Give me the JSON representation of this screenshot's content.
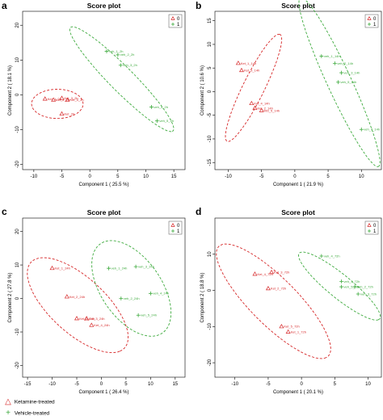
{
  "colors": {
    "group0": "#d62728",
    "group1": "#3daa3d",
    "axis": "#000000"
  },
  "chart_data": [
    {
      "panel": "a",
      "type": "scatter",
      "title": "Score plot",
      "xlabel": "Component 1 ( 25.5 %)",
      "ylabel": "Component 2 ( 18.1 %)",
      "xlim": [
        -12,
        17
      ],
      "ylim": [
        -21.5,
        24
      ],
      "xticks": [
        -10,
        -5,
        0,
        5,
        10,
        15
      ],
      "yticks": [
        -20,
        -10,
        0,
        10,
        20
      ],
      "legend": {
        "position": "top-right",
        "entries": [
          "0",
          "1"
        ]
      },
      "series": [
        {
          "name": "0",
          "marker": "triangle",
          "points": [
            {
              "label": "Ket_1_2h",
              "x": -8.0,
              "y": -1.2
            },
            {
              "label": "Ket_2_2h",
              "x": -6.5,
              "y": -1.5
            },
            {
              "label": "Ket_3_2h",
              "x": -5.0,
              "y": -1.0
            },
            {
              "label": "Ket_5_2h",
              "x": -4.0,
              "y": -1.5
            },
            {
              "label": "Ket_2h",
              "x": -5.0,
              "y": -5.5
            }
          ],
          "ellipse": {
            "cx": -5.8,
            "cy": -2.6,
            "rx": 4.6,
            "ry": 4.2,
            "angle": 0
          }
        },
        {
          "name": "1",
          "marker": "plus",
          "points": [
            {
              "label": "veh_1_2h",
              "x": 3.0,
              "y": 12.5
            },
            {
              "label": "veh_2_2h",
              "x": 5.0,
              "y": 11.5
            },
            {
              "label": "veh_3_2h",
              "x": 5.5,
              "y": 8.5
            },
            {
              "label": "veh_4_2h",
              "x": 11.0,
              "y": -3.5
            },
            {
              "label": "veh_5_2h",
              "x": 12.0,
              "y": -7.5
            }
          ],
          "ellipse": {
            "cx": 5.7,
            "cy": 4.5,
            "rx": 17.5,
            "ry": 2.6,
            "angle": -59
          }
        }
      ]
    },
    {
      "panel": "b",
      "type": "scatter",
      "title": "Score plot",
      "xlabel": "Component 1 ( 21.9 %)",
      "ylabel": "Component 2 ( 10.6 %)",
      "xlim": [
        -12,
        13
      ],
      "ylim": [
        -16.5,
        17
      ],
      "xticks": [
        -10,
        -5,
        0,
        5,
        10
      ],
      "yticks": [
        -15,
        -10,
        -5,
        0,
        5,
        10,
        15
      ],
      "legend": {
        "position": "top-right",
        "entries": [
          "0",
          "1"
        ]
      },
      "series": [
        {
          "name": "0",
          "marker": "triangle",
          "points": [
            {
              "label": "Ket_1_14h",
              "x": -8.5,
              "y": 6.0
            },
            {
              "label": "Ket_3_14h",
              "x": -8.0,
              "y": 4.5
            },
            {
              "label": "Ket_4_14h",
              "x": -6.5,
              "y": -2.5
            },
            {
              "label": "Ket_2_14h",
              "x": -6.0,
              "y": -3.5
            },
            {
              "label": "Ket_5_14h",
              "x": -5.0,
              "y": -4.0
            }
          ],
          "ellipse": {
            "cx": -6.2,
            "cy": 0.8,
            "rx": 12.0,
            "ry": 1.7,
            "angle": 71
          }
        },
        {
          "name": "1",
          "marker": "plus",
          "points": [
            {
              "label": "veh_1_14h",
              "x": 4.0,
              "y": 7.5
            },
            {
              "label": "veh_2_14h",
              "x": 6.0,
              "y": 6.0
            },
            {
              "label": "veh_3_14h",
              "x": 7.0,
              "y": 4.0
            },
            {
              "label": "veh_5_14h",
              "x": 6.5,
              "y": 2.0
            },
            {
              "label": "veh_4_14h",
              "x": 10.0,
              "y": -8.0
            }
          ],
          "ellipse": {
            "cx": 6.7,
            "cy": 2.0,
            "rx": 18.8,
            "ry": 1.9,
            "angle": -72
          }
        }
      ]
    },
    {
      "panel": "c",
      "type": "scatter",
      "title": "Score plot",
      "xlabel": "Component 1 ( 26.4 %)",
      "ylabel": "Component 2 ( 27.8 %)",
      "xlim": [
        -16,
        17
      ],
      "ylim": [
        -23.5,
        24
      ],
      "xticks": [
        -15,
        -10,
        -5,
        0,
        5,
        10,
        15
      ],
      "yticks": [
        -20,
        -10,
        0,
        10,
        20
      ],
      "legend": {
        "position": "top-right",
        "entries": [
          "0",
          "1"
        ]
      },
      "series": [
        {
          "name": "0",
          "marker": "triangle",
          "points": [
            {
              "label": "Ket_1_24h",
              "x": -10.0,
              "y": 9.0
            },
            {
              "label": "Ket_2_24h",
              "x": -7.0,
              "y": 0.5
            },
            {
              "label": "Ket_5_24h",
              "x": -5.0,
              "y": -6.0
            },
            {
              "label": "Ket_3_24h",
              "x": -3.0,
              "y": -6.0
            },
            {
              "label": "Ket_4_24h",
              "x": -2.0,
              "y": -8.0
            }
          ],
          "ellipse": {
            "cx": -4.8,
            "cy": -2.0,
            "rx": 16.2,
            "ry": 6.6,
            "angle": -58
          }
        },
        {
          "name": "1",
          "marker": "plus",
          "points": [
            {
              "label": "veh_1_24h",
              "x": 1.5,
              "y": 9.0
            },
            {
              "label": "veh_3_24h",
              "x": 7.0,
              "y": 9.5
            },
            {
              "label": "veh_2_24h",
              "x": 4.0,
              "y": 0.0
            },
            {
              "label": "veh_4_24h",
              "x": 10.0,
              "y": 1.5
            },
            {
              "label": "veh_5_24h",
              "x": 7.5,
              "y": -5.0
            }
          ],
          "ellipse": {
            "cx": 6.1,
            "cy": 3.0,
            "rx": 15.0,
            "ry": 6.6,
            "angle": -70
          }
        }
      ]
    },
    {
      "panel": "d",
      "type": "scatter",
      "title": "Score plot",
      "xlabel": "Component 1 ( 20.1 %)",
      "ylabel": "Component 2 ( 18.8 %)",
      "xlim": [
        -13,
        12
      ],
      "ylim": [
        -24,
        20
      ],
      "xticks": [
        -10,
        -5,
        0,
        5,
        10
      ],
      "yticks": [
        -20,
        -10,
        0,
        10
      ],
      "legend": {
        "position": "top-right",
        "entries": [
          "0",
          "1"
        ]
      },
      "series": [
        {
          "name": "0",
          "marker": "triangle",
          "points": [
            {
              "label": "Ket_4_72h",
              "x": -7.0,
              "y": 4.5
            },
            {
              "label": "Ket_3_72h",
              "x": -4.5,
              "y": 5.0
            },
            {
              "label": "Ket_2_72h",
              "x": -5.0,
              "y": 0.5
            },
            {
              "label": "Ket_5_72h",
              "x": -3.0,
              "y": -10.0
            },
            {
              "label": "Ket_1_72h",
              "x": -2.0,
              "y": -11.5
            }
          ],
          "ellipse": {
            "cx": -4.2,
            "cy": -3.0,
            "rx": 17.5,
            "ry": 4.3,
            "angle": -64
          }
        },
        {
          "name": "1",
          "marker": "plus",
          "points": [
            {
              "label": "veh_4_72h",
              "x": 3.0,
              "y": 9.5
            },
            {
              "label": "veh_1_72h",
              "x": 6.0,
              "y": 2.5
            },
            {
              "label": "veh_5_72h",
              "x": 6.0,
              "y": 1.0
            },
            {
              "label": "veh_2_72h",
              "x": 8.0,
              "y": 1.0
            },
            {
              "label": "veh_3_72h",
              "x": 8.5,
              "y": -1.0
            }
          ],
          "ellipse": {
            "cx": 5.7,
            "cy": 1.2,
            "rx": 11.0,
            "ry": 2.3,
            "angle": -58
          }
        }
      ]
    }
  ],
  "bottom_legend": [
    {
      "group": "0",
      "symbol": "△",
      "label": "Ketamine-treated"
    },
    {
      "group": "1",
      "symbol": "+",
      "label": "Vehicle-treated"
    }
  ]
}
